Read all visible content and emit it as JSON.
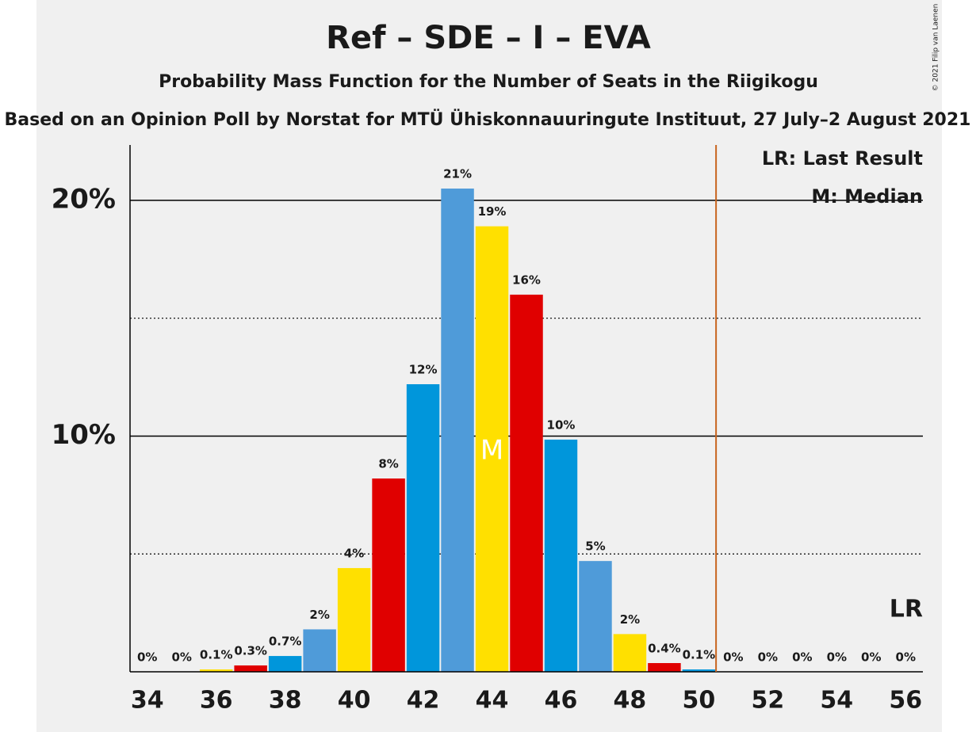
{
  "chart_data": {
    "type": "bar",
    "title": "Ref – SDE – I – EVA",
    "subtitle": "Probability Mass Function for the Number of Seats in the Riigikogu",
    "caption": "Based on an Opinion Poll by Norstat for MTÜ Ühiskonnauuringute Instituut, 27 July–2 August 2021",
    "copyright": "© 2021 Filip van Laenen",
    "x": [
      34,
      35,
      36,
      37,
      38,
      39,
      40,
      41,
      42,
      43,
      44,
      45,
      46,
      47,
      48,
      49,
      50,
      51,
      52,
      53,
      54,
      55,
      56
    ],
    "values": [
      0,
      0,
      0.1,
      0.27,
      0.67,
      1.8,
      4.4,
      8.2,
      12.2,
      20.5,
      18.9,
      16.0,
      9.85,
      4.7,
      1.6,
      0.37,
      0.1,
      0,
      0,
      0,
      0,
      0,
      0
    ],
    "value_labels": [
      "0%",
      "0%",
      "0.1%",
      "0.3%",
      "0.7%",
      "2%",
      "4%",
      "8%",
      "12%",
      "21%",
      "19%",
      "16%",
      "10%",
      "5%",
      "2%",
      "0.4%",
      "0.1%",
      "0%",
      "0%",
      "0%",
      "0%",
      "0%",
      "0%"
    ],
    "colors": [
      "#0096db",
      "#4f9bd9",
      "#ffe000",
      "#e00000",
      "#0096db",
      "#4f9bd9",
      "#ffe000",
      "#e00000",
      "#0096db",
      "#4f9bd9",
      "#ffe000",
      "#e00000",
      "#0096db",
      "#4f9bd9",
      "#ffe000",
      "#e00000",
      "#0096db",
      "#4f9bd9",
      "#ffe000",
      "#e00000",
      "#0096db",
      "#4f9bd9",
      "#ffe000"
    ],
    "xlim": [
      33.5,
      56.5
    ],
    "xticks": [
      34,
      36,
      38,
      40,
      42,
      44,
      46,
      48,
      50,
      52,
      54,
      56
    ],
    "ylim": [
      0,
      22.35
    ],
    "yticks": [
      {
        "value": 10,
        "label": "10%"
      },
      {
        "value": 20,
        "label": "20%"
      }
    ],
    "minor_yticks": [
      5,
      15
    ],
    "median": 44,
    "median_label": "M",
    "last_result_x": 50.5,
    "last_result_label": "LR",
    "legend": [
      "LR: Last Result",
      "M: Median"
    ]
  }
}
